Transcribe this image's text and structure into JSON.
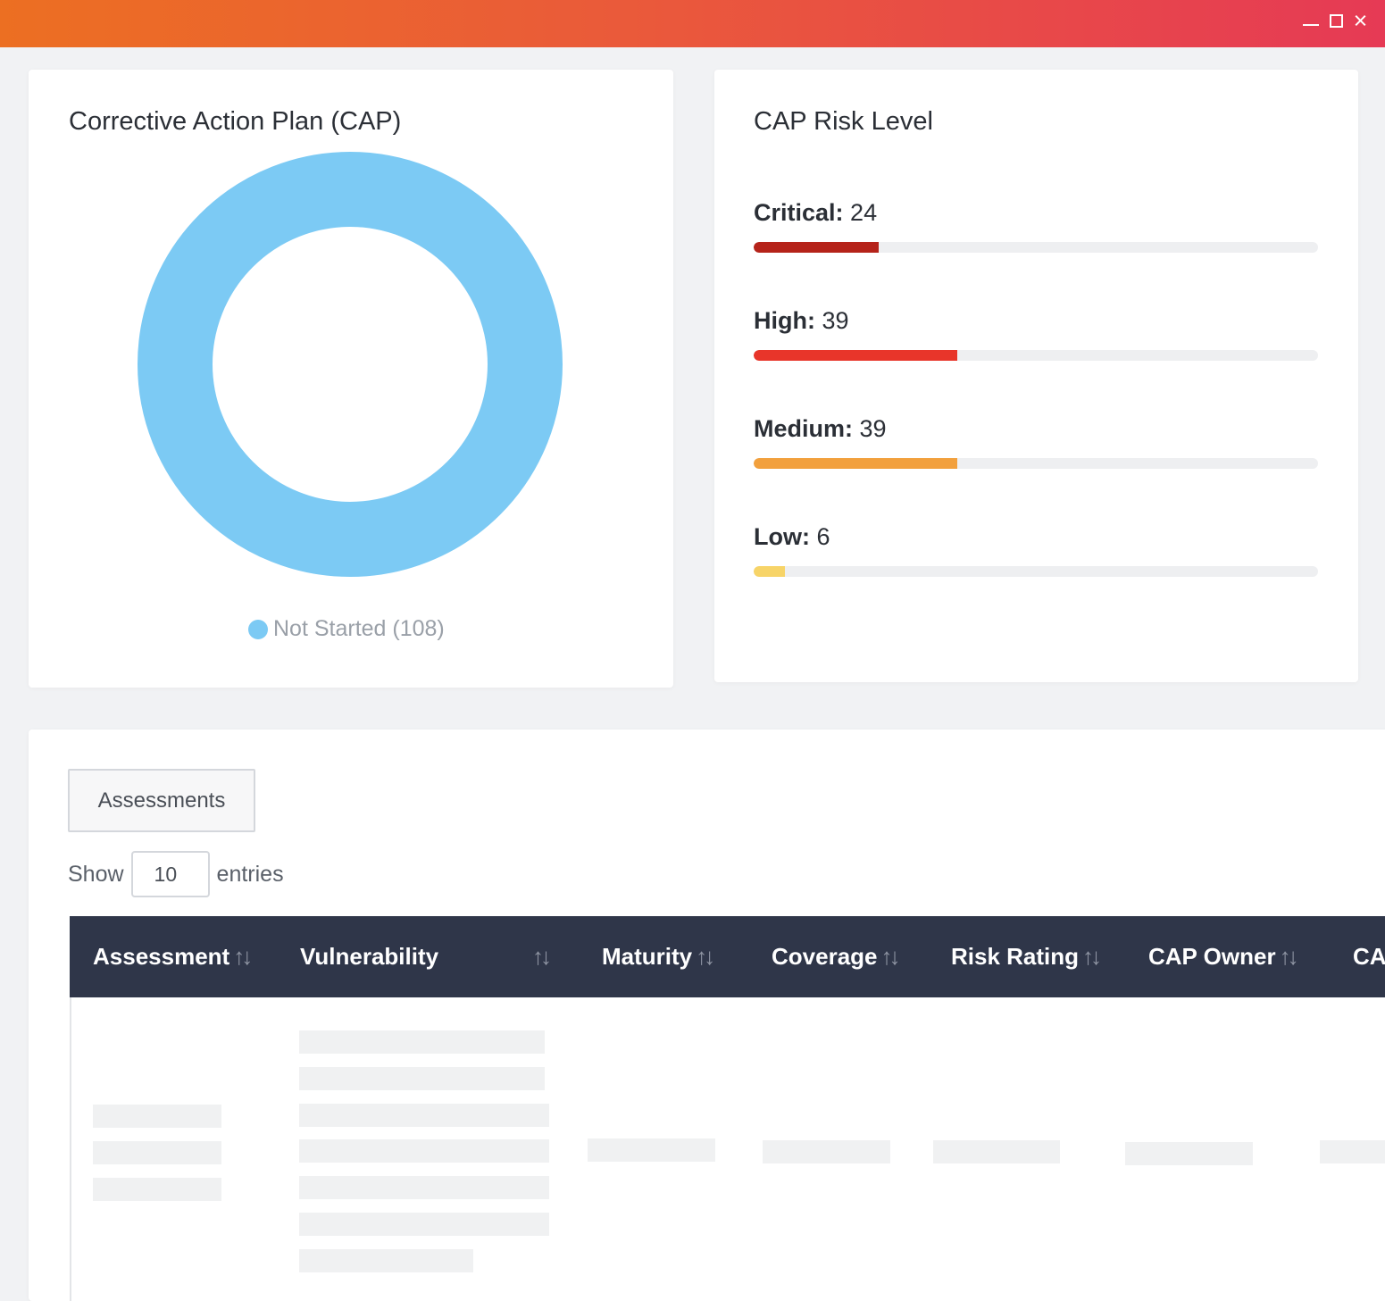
{
  "window": {
    "controls": [
      "minimize",
      "maximize",
      "close"
    ]
  },
  "cap_chart": {
    "title": "Corrective Action Plan (CAP)",
    "legend_label": "Not Started (108)",
    "color": "#7ccaf4",
    "chart_data": {
      "type": "pie",
      "categories": [
        "Not Started"
      ],
      "values": [
        108
      ]
    }
  },
  "risk_level": {
    "title": "CAP Risk Level",
    "items": [
      {
        "label": "Critical:",
        "value": "24",
        "fraction": 0.222,
        "color": "#b5231a"
      },
      {
        "label": "High:",
        "value": "39",
        "fraction": 0.361,
        "color": "#e8352a"
      },
      {
        "label": "Medium:",
        "value": "39",
        "fraction": 0.361,
        "color": "#f2a03d"
      },
      {
        "label": "Low:",
        "value": "6",
        "fraction": 0.056,
        "color": "#f7d468"
      }
    ]
  },
  "table": {
    "tab_label": "Assessments",
    "show_label": "Show",
    "entries_value": "10",
    "entries_label": "entries",
    "columns": [
      "Assessment",
      "Vulnerability",
      "Maturity",
      "Coverage",
      "Risk Rating",
      "CAP Owner",
      "CA"
    ],
    "sort_glyph": "↑↓"
  }
}
